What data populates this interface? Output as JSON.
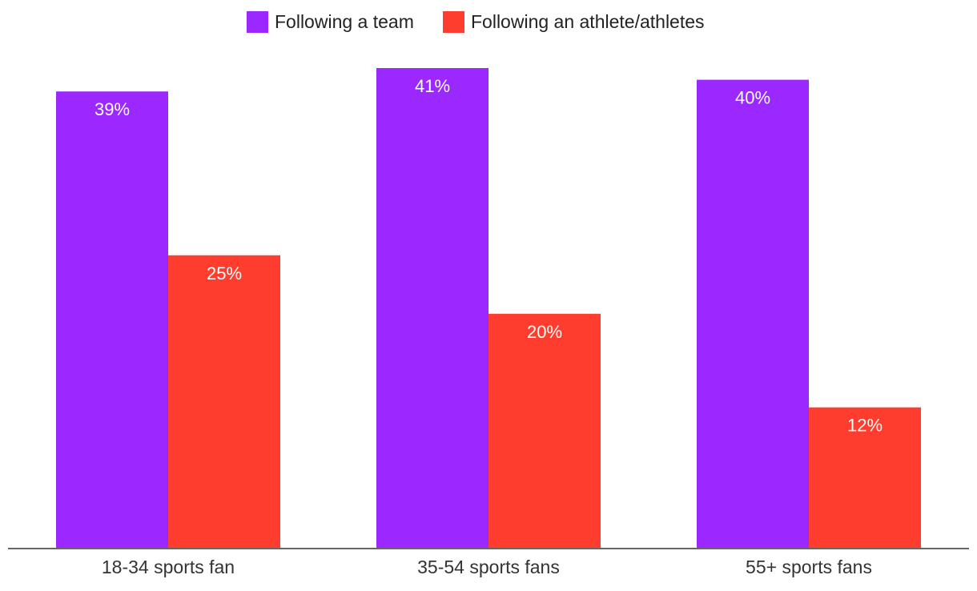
{
  "chart_data": {
    "type": "bar",
    "categories": [
      "18-34 sports fan",
      "35-54 sports fans",
      "55+ sports fans"
    ],
    "series": [
      {
        "name": "Following a team",
        "color": "#9B28FF",
        "values": [
          39,
          41,
          40
        ],
        "value_labels": [
          "39%",
          "41%",
          "40%"
        ]
      },
      {
        "name": "Following an athlete/athletes",
        "color": "#FF3D2E",
        "values": [
          25,
          20,
          12
        ],
        "value_labels": [
          "25%",
          "20%",
          "12%"
        ]
      }
    ],
    "title": "",
    "xlabel": "",
    "ylabel": "",
    "ylim": [
      0,
      41
    ],
    "grid": false,
    "legend_position": "top-center",
    "axis_color": "#333333"
  }
}
